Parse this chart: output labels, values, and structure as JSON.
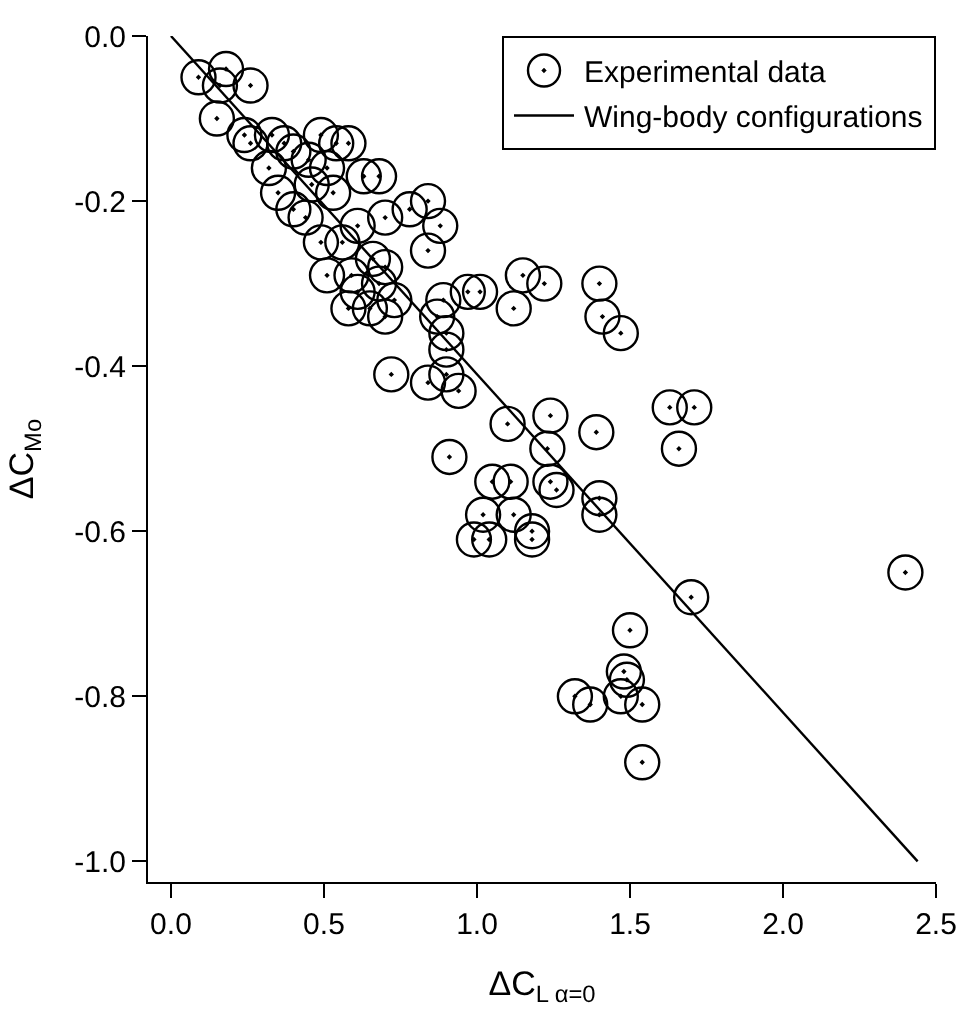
{
  "chart_data": {
    "type": "scatter",
    "xlabel": "ΔC$_{L α=0}$",
    "ylabel": "ΔC$_{Mo}$",
    "xlim": [
      -0.075,
      2.5
    ],
    "xticks": [
      {
        "value": 0,
        "label": "0.0"
      },
      0.5,
      {
        "value": 1,
        "label": "1.0"
      },
      1.5,
      {
        "value": 2,
        "label": "2.0"
      },
      2.5
    ],
    "ylim": [
      -1.025,
      0
    ],
    "yticks": [
      {
        "value": 0,
        "label": "0.0"
      },
      -0.2,
      -0.4,
      -0.6,
      -0.8,
      {
        "value": -1,
        "label": "-1.0"
      }
    ],
    "legend": "top right",
    "marker": "circle",
    "series": [
      {
        "name": "Experimental data",
        "color": "#000000",
        "x": [
          0.09,
          0.18,
          0.16,
          0.26,
          0.15,
          0.24,
          0.26,
          0.33,
          0.37,
          0.45,
          0.49,
          0.54,
          0.58,
          0.32,
          0.4,
          0.51,
          0.63,
          0.68,
          0.35,
          0.46,
          0.53,
          0.44,
          0.4,
          0.61,
          0.7,
          0.78,
          0.84,
          0.88,
          0.84,
          0.49,
          0.56,
          0.66,
          0.7,
          0.51,
          0.59,
          0.61,
          0.68,
          0.58,
          0.65,
          0.7,
          0.73,
          0.89,
          0.97,
          1.01,
          0.87,
          0.9,
          0.9,
          1.15,
          1.22,
          1.12,
          0.72,
          0.84,
          0.9,
          0.94,
          1.1,
          1.24,
          0.91,
          1.05,
          1.24,
          1.4,
          1.41,
          1.47,
          1.63,
          1.71,
          1.66,
          1.39,
          1.11,
          1.23,
          1.26,
          1.4,
          1.4,
          1.02,
          1.12,
          0.99,
          1.04,
          1.18,
          1.18,
          2.4,
          1.7,
          1.5,
          1.48,
          1.49,
          1.47,
          1.32,
          1.37,
          1.54,
          1.54
        ],
        "values": [
          -0.05,
          -0.04,
          -0.06,
          -0.06,
          -0.1,
          -0.12,
          -0.13,
          -0.12,
          -0.13,
          -0.15,
          -0.12,
          -0.13,
          -0.13,
          -0.16,
          -0.14,
          -0.16,
          -0.17,
          -0.17,
          -0.19,
          -0.18,
          -0.19,
          -0.22,
          -0.21,
          -0.23,
          -0.22,
          -0.21,
          -0.2,
          -0.23,
          -0.26,
          -0.25,
          -0.25,
          -0.27,
          -0.28,
          -0.29,
          -0.29,
          -0.31,
          -0.3,
          -0.33,
          -0.33,
          -0.34,
          -0.32,
          -0.32,
          -0.31,
          -0.31,
          -0.34,
          -0.36,
          -0.38,
          -0.29,
          -0.3,
          -0.33,
          -0.41,
          -0.42,
          -0.41,
          -0.43,
          -0.47,
          -0.46,
          -0.51,
          -0.54,
          -0.54,
          -0.3,
          -0.34,
          -0.36,
          -0.45,
          -0.45,
          -0.5,
          -0.48,
          -0.54,
          -0.5,
          -0.55,
          -0.56,
          -0.58,
          -0.58,
          -0.58,
          -0.61,
          -0.61,
          -0.6,
          -0.61,
          -0.65,
          -0.68,
          -0.72,
          -0.77,
          -0.78,
          -0.8,
          -0.8,
          -0.81,
          -0.81,
          -0.88
        ]
      },
      {
        "name": "Wing-body configurations",
        "type": "line",
        "color": "#000000",
        "marker": "none",
        "line_style": "solid",
        "x": [
          0,
          2.44
        ],
        "values": [
          0,
          -1.0
        ]
      }
    ]
  }
}
